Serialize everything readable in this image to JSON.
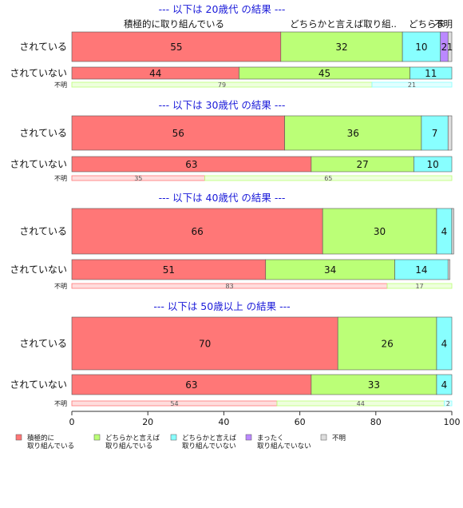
{
  "chart_data": {
    "type": "bar",
    "orientation": "horizontal-stacked",
    "xlim": [
      0,
      100
    ],
    "xticks": [
      0,
      20,
      40,
      60,
      80,
      100
    ],
    "colors": {
      "積極的": "#ff7777",
      "どちらか取り組む": "#bbff77",
      "どちらか取り組まない": "#88ffff",
      "まったく": "#bb88ff",
      "不明": "#dddddd"
    },
    "legend": [
      {
        "key": "積極的",
        "label1": "積極的に",
        "label2": "取り組んでいる"
      },
      {
        "key": "どちらか取り組む",
        "label1": "どちらかと言えば",
        "label2": "取り組んでいる"
      },
      {
        "key": "どちらか取り組まない",
        "label1": "どちらかと言えば",
        "label2": "取り組んでいない"
      },
      {
        "key": "まったく",
        "label1": "まったく",
        "label2": "取り組んでいない"
      },
      {
        "key": "不明",
        "label1": "不明",
        "label2": ""
      }
    ],
    "header_labels": [
      "積極的に取り組んでいる",
      "どちらかと言えば取り組..",
      "どちらま",
      "不明"
    ],
    "groups": [
      {
        "title": "--- 以下は 20歳代 の結果 ---",
        "rows": [
          {
            "label": "されている",
            "values": [
              55,
              32,
              10,
              2,
              1
            ],
            "labels": [
              "55",
              "32",
              "10",
              "2",
              "1"
            ]
          },
          {
            "label": "されていない",
            "values": [
              44,
              45,
              11,
              0,
              0
            ],
            "labels": [
              "44",
              "45",
              "11",
              "",
              ""
            ]
          }
        ],
        "fumei": {
          "label": "不明",
          "values": [
            79,
            21
          ],
          "labels": [
            "79",
            "21"
          ],
          "colors": [
            "#bbff77",
            "#88ffff"
          ]
        }
      },
      {
        "title": "--- 以下は 30歳代 の結果 ---",
        "rows": [
          {
            "label": "されている",
            "values": [
              56,
              36,
              7,
              0,
              1
            ],
            "labels": [
              "56",
              "36",
              "7",
              "",
              ""
            ]
          },
          {
            "label": "されていない",
            "values": [
              63,
              27,
              10,
              0,
              0
            ],
            "labels": [
              "63",
              "27",
              "10",
              "",
              ""
            ]
          }
        ],
        "fumei": {
          "label": "不明",
          "values": [
            35,
            65
          ],
          "labels": [
            "35",
            "65"
          ],
          "colors": [
            "#ff7777",
            "#bbff77"
          ]
        }
      },
      {
        "title": "--- 以下は 40歳代 の結果 ---",
        "rows": [
          {
            "label": "されている",
            "values": [
              66,
              30,
              4,
              0,
              0.5
            ],
            "labels": [
              "66",
              "30",
              "4",
              "",
              ""
            ]
          },
          {
            "label": "されていない",
            "values": [
              51,
              34,
              14,
              0,
              0.5
            ],
            "labels": [
              "51",
              "34",
              "14",
              "",
              ""
            ]
          }
        ],
        "fumei": {
          "label": "不明",
          "values": [
            83,
            17
          ],
          "labels": [
            "83",
            "17"
          ],
          "colors": [
            "#ff7777",
            "#bbff77"
          ]
        }
      },
      {
        "title": "--- 以下は 50歳以上 の結果 ---",
        "rows": [
          {
            "label": "されている",
            "values": [
              70,
              26,
              4,
              0,
              0
            ],
            "labels": [
              "70",
              "26",
              "4",
              "",
              ""
            ]
          },
          {
            "label": "されていない",
            "values": [
              63,
              33,
              4,
              0,
              0
            ],
            "labels": [
              "63",
              "33",
              "4",
              "",
              ""
            ]
          }
        ],
        "fumei": {
          "label": "不明",
          "values": [
            54,
            44,
            2
          ],
          "labels": [
            "54",
            "44",
            "2"
          ],
          "colors": [
            "#ff7777",
            "#bbff77",
            "#88ffff"
          ]
        }
      }
    ]
  }
}
